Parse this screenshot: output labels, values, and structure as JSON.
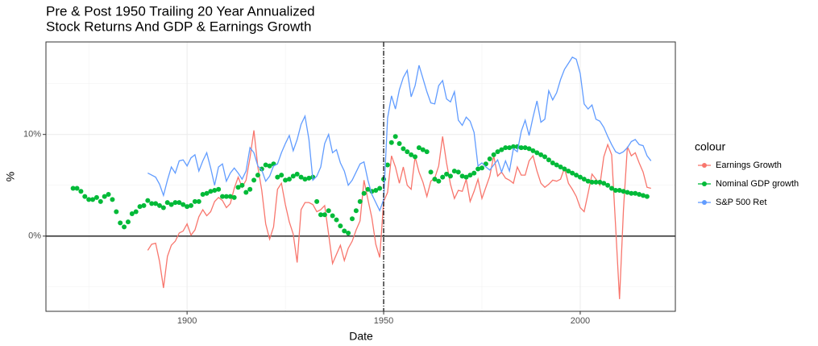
{
  "chart_data": {
    "type": "line",
    "title": [
      "Pre & Post 1950 Trailing 20 Year Annualized",
      "Stock Returns And GDP & Earnings Growth"
    ],
    "x_label": "Date",
    "y_label": "%",
    "legend_title": "colour",
    "legend": "right",
    "grid": true,
    "xlim": [
      1864.1,
      2024.2
    ],
    "ylim": [
      -7.4,
      19.1
    ],
    "xticks": [
      1900,
      1950,
      2000
    ],
    "x_minor_ticks": [
      1875,
      1925,
      1975
    ],
    "yticks": [
      {
        "value": 0,
        "label": "0%"
      },
      {
        "value": 10,
        "label": "10%"
      }
    ],
    "y_minor_ticks": [
      -5,
      5,
      15
    ],
    "hline": 0,
    "vline": 1950,
    "series": [
      {
        "name": "Earnings Growth",
        "color": "#F8766D",
        "style": "line",
        "x": [
          1890,
          1891,
          1892,
          1893,
          1894,
          1895,
          1896,
          1897,
          1898,
          1899,
          1900,
          1901,
          1902,
          1903,
          1904,
          1905,
          1906,
          1907,
          1908,
          1909,
          1910,
          1911,
          1912,
          1913,
          1914,
          1915,
          1916,
          1917,
          1918,
          1919,
          1920,
          1921,
          1922,
          1923,
          1924,
          1925,
          1926,
          1927,
          1928,
          1929,
          1930,
          1931,
          1932,
          1933,
          1934,
          1935,
          1936,
          1937,
          1938,
          1939,
          1940,
          1941,
          1942,
          1943,
          1944,
          1945,
          1946,
          1947,
          1948,
          1949,
          1950,
          1951,
          1952,
          1953,
          1954,
          1955,
          1956,
          1957,
          1958,
          1959,
          1960,
          1961,
          1962,
          1963,
          1964,
          1965,
          1966,
          1967,
          1968,
          1969,
          1970,
          1971,
          1972,
          1973,
          1974,
          1975,
          1976,
          1977,
          1978,
          1979,
          1980,
          1981,
          1982,
          1983,
          1984,
          1985,
          1986,
          1987,
          1988,
          1989,
          1990,
          1991,
          1992,
          1993,
          1994,
          1995,
          1996,
          1997,
          1998,
          1999,
          2000,
          2001,
          2002,
          2003,
          2004,
          2005,
          2006,
          2007,
          2008,
          2009,
          2010,
          2011,
          2012,
          2013,
          2014,
          2015,
          2016,
          2017,
          2018
        ],
        "values": [
          -1.4,
          -0.8,
          -0.7,
          -2.5,
          -5.1,
          -2.0,
          -0.9,
          -0.5,
          0.3,
          0.5,
          1.2,
          0.1,
          0.6,
          1.9,
          2.6,
          2.0,
          2.4,
          3.4,
          3.8,
          3.5,
          2.8,
          3.2,
          4.7,
          5.8,
          4.8,
          5.5,
          7.7,
          10.4,
          6.8,
          4.5,
          1.2,
          -0.3,
          0.9,
          4.6,
          5.2,
          3.1,
          1.4,
          0.2,
          -2.6,
          2.6,
          3.3,
          3.3,
          3.1,
          2.4,
          2.6,
          3.0,
          0.2,
          -2.7,
          -1.8,
          -0.9,
          -2.4,
          -1.2,
          -0.5,
          0.6,
          1.5,
          5.5,
          3.6,
          1.8,
          -0.8,
          -2.1,
          3.4,
          4.3,
          7.9,
          6.8,
          5.2,
          6.8,
          5.0,
          4.6,
          7.8,
          6.3,
          5.3,
          3.9,
          5.4,
          5.7,
          6.9,
          9.8,
          7.2,
          5.1,
          3.7,
          4.5,
          4.4,
          5.6,
          3.4,
          4.4,
          5.6,
          3.7,
          4.8,
          5.9,
          7.9,
          5.9,
          6.3,
          5.7,
          5.5,
          5.2,
          6.8,
          6.0,
          6.0,
          7.4,
          7.9,
          6.4,
          5.2,
          4.8,
          5.1,
          5.5,
          5.4,
          5.6,
          6.7,
          5.2,
          4.6,
          3.9,
          2.8,
          2.4,
          4.2,
          6.1,
          5.6,
          5.0,
          7.8,
          9.0,
          8.0,
          1.0,
          -6.2,
          2.6,
          8.8,
          7.9,
          8.2,
          7.2,
          6.3,
          4.8,
          4.7
        ]
      },
      {
        "name": "Nominal GDP growth",
        "color": "#00BA38",
        "style": "points",
        "x": [
          1871,
          1872,
          1873,
          1874,
          1875,
          1876,
          1877,
          1878,
          1879,
          1880,
          1881,
          1882,
          1883,
          1884,
          1885,
          1886,
          1887,
          1888,
          1889,
          1890,
          1891,
          1892,
          1893,
          1894,
          1895,
          1896,
          1897,
          1898,
          1899,
          1900,
          1901,
          1902,
          1903,
          1904,
          1905,
          1906,
          1907,
          1908,
          1909,
          1910,
          1911,
          1912,
          1913,
          1914,
          1915,
          1916,
          1917,
          1918,
          1919,
          1920,
          1921,
          1922,
          1923,
          1924,
          1925,
          1926,
          1927,
          1928,
          1929,
          1930,
          1931,
          1932,
          1933,
          1934,
          1935,
          1936,
          1937,
          1938,
          1939,
          1940,
          1941,
          1942,
          1943,
          1944,
          1945,
          1946,
          1947,
          1948,
          1949,
          1950,
          1951,
          1952,
          1953,
          1954,
          1955,
          1956,
          1957,
          1958,
          1959,
          1960,
          1961,
          1962,
          1963,
          1964,
          1965,
          1966,
          1967,
          1968,
          1969,
          1970,
          1971,
          1972,
          1973,
          1974,
          1975,
          1976,
          1977,
          1978,
          1979,
          1980,
          1981,
          1982,
          1983,
          1984,
          1985,
          1986,
          1987,
          1988,
          1989,
          1990,
          1991,
          1992,
          1993,
          1994,
          1995,
          1996,
          1997,
          1998,
          1999,
          2000,
          2001,
          2002,
          2003,
          2004,
          2005,
          2006,
          2007,
          2008,
          2009,
          2010,
          2011,
          2012,
          2013,
          2014,
          2015,
          2016,
          2017
        ],
        "values": [
          4.7,
          4.7,
          4.4,
          3.9,
          3.6,
          3.6,
          3.8,
          3.4,
          3.9,
          4.1,
          3.6,
          2.4,
          1.3,
          0.9,
          1.4,
          2.2,
          2.4,
          2.9,
          3.0,
          3.5,
          3.2,
          3.2,
          3.0,
          2.8,
          3.3,
          3.1,
          3.3,
          3.3,
          3.1,
          2.9,
          3.0,
          3.4,
          3.4,
          4.1,
          4.2,
          4.4,
          4.5,
          4.6,
          3.9,
          3.9,
          3.9,
          3.8,
          4.8,
          5.0,
          4.3,
          4.6,
          5.5,
          6.0,
          6.6,
          7.0,
          6.9,
          7.1,
          5.8,
          6.0,
          5.5,
          5.6,
          5.9,
          6.1,
          5.8,
          5.6,
          5.7,
          5.8,
          3.4,
          2.1,
          2.1,
          2.5,
          2.0,
          1.6,
          1.0,
          0.5,
          0.3,
          1.7,
          2.5,
          3.4,
          4.2,
          4.6,
          4.4,
          4.5,
          4.7,
          5.6,
          7.0,
          9.2,
          9.8,
          9.1,
          8.6,
          8.3,
          8.0,
          7.8,
          8.7,
          8.5,
          8.3,
          6.3,
          5.6,
          5.4,
          5.8,
          6.1,
          5.9,
          6.4,
          6.3,
          5.9,
          5.8,
          6.0,
          6.2,
          6.6,
          6.7,
          7.1,
          7.6,
          8.0,
          8.3,
          8.5,
          8.7,
          8.7,
          8.8,
          8.8,
          8.7,
          8.7,
          8.6,
          8.4,
          8.2,
          8.0,
          7.8,
          7.5,
          7.2,
          7.0,
          6.8,
          6.6,
          6.4,
          6.2,
          6.0,
          5.8,
          5.6,
          5.4,
          5.3,
          5.3,
          5.3,
          5.2,
          5.0,
          4.7,
          4.5,
          4.5,
          4.4,
          4.3,
          4.2,
          4.2,
          4.1,
          4.0,
          3.9
        ]
      },
      {
        "name": "S&P 500 Ret",
        "color": "#619CFF",
        "style": "line",
        "x": [
          1890,
          1891,
          1892,
          1893,
          1894,
          1895,
          1896,
          1897,
          1898,
          1899,
          1900,
          1901,
          1902,
          1903,
          1904,
          1905,
          1906,
          1907,
          1908,
          1909,
          1910,
          1911,
          1912,
          1913,
          1914,
          1915,
          1916,
          1917,
          1918,
          1919,
          1920,
          1921,
          1922,
          1923,
          1924,
          1925,
          1926,
          1927,
          1928,
          1929,
          1930,
          1931,
          1932,
          1933,
          1934,
          1935,
          1936,
          1937,
          1938,
          1939,
          1940,
          1941,
          1942,
          1943,
          1944,
          1945,
          1946,
          1947,
          1948,
          1949,
          1950,
          1951,
          1952,
          1953,
          1954,
          1955,
          1956,
          1957,
          1958,
          1959,
          1960,
          1961,
          1962,
          1963,
          1964,
          1965,
          1966,
          1967,
          1968,
          1969,
          1970,
          1971,
          1972,
          1973,
          1974,
          1975,
          1976,
          1977,
          1978,
          1979,
          1980,
          1981,
          1982,
          1983,
          1984,
          1985,
          1986,
          1987,
          1988,
          1989,
          1990,
          1991,
          1992,
          1993,
          1994,
          1995,
          1996,
          1997,
          1998,
          1999,
          2000,
          2001,
          2002,
          2003,
          2004,
          2005,
          2006,
          2007,
          2008,
          2009,
          2010,
          2011,
          2012,
          2013,
          2014,
          2015,
          2016,
          2017,
          2018
        ],
        "values": [
          6.2,
          6.0,
          5.8,
          5.1,
          4.0,
          5.5,
          6.8,
          6.2,
          7.4,
          7.5,
          6.9,
          7.7,
          8.0,
          6.4,
          7.4,
          8.2,
          6.7,
          5.0,
          6.8,
          7.1,
          5.4,
          6.2,
          6.7,
          6.2,
          5.6,
          6.4,
          8.7,
          8.2,
          6.9,
          6.5,
          5.4,
          5.9,
          6.9,
          7.1,
          8.2,
          9.1,
          9.9,
          8.4,
          9.5,
          11.0,
          11.8,
          9.5,
          5.5,
          5.9,
          6.8,
          9.1,
          10.0,
          8.2,
          8.5,
          7.2,
          6.4,
          5.0,
          5.5,
          6.3,
          7.1,
          7.3,
          5.5,
          4.1,
          3.3,
          2.5,
          3.6,
          11.6,
          13.8,
          12.5,
          14.4,
          15.6,
          16.3,
          13.7,
          14.8,
          16.8,
          15.5,
          14.2,
          13.1,
          13.0,
          14.8,
          15.3,
          13.5,
          13.2,
          14.2,
          11.4,
          10.9,
          11.7,
          11.3,
          10.2,
          6.9,
          7.2,
          6.8,
          6.5,
          7.0,
          7.5,
          6.3,
          7.4,
          6.4,
          8.6,
          8.3,
          10.3,
          11.4,
          9.9,
          11.7,
          13.3,
          11.2,
          11.5,
          14.3,
          13.4,
          14.1,
          15.4,
          16.4,
          17.0,
          17.6,
          17.4,
          16.0,
          13.0,
          12.5,
          12.9,
          11.5,
          11.3,
          10.7,
          9.8,
          9.0,
          8.3,
          8.1,
          8.3,
          8.7,
          9.3,
          9.5,
          9.0,
          8.9,
          7.9,
          7.4
        ]
      }
    ]
  }
}
